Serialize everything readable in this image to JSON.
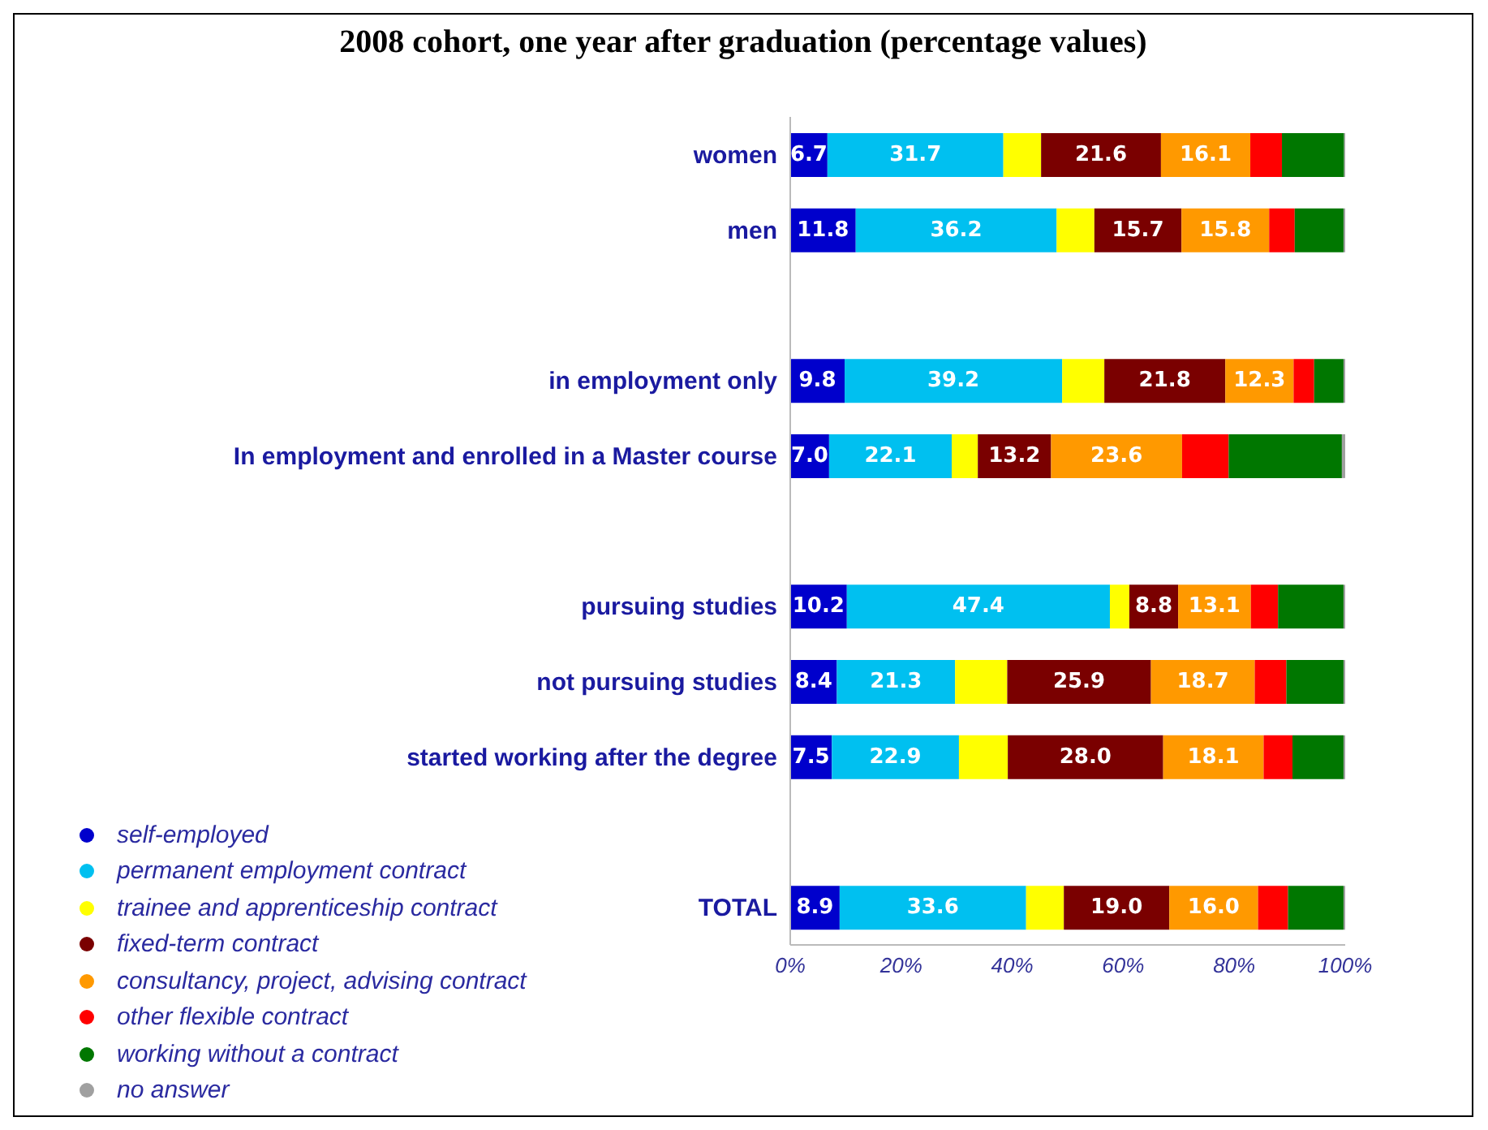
{
  "chart_data": {
    "type": "bar",
    "orientation": "horizontal",
    "stacked": true,
    "title": "2008 cohort, one year after graduation (percentage values)",
    "categories": [
      "women",
      "men",
      null,
      "in employment only",
      "In employment and enrolled in a Master course",
      null,
      "pursuing studies",
      "not pursuing studies",
      "started working after the degree",
      null,
      "TOTAL"
    ],
    "series": [
      {
        "name": "self-employed",
        "color": "#0000cc",
        "values": [
          6.7,
          11.8,
          null,
          9.8,
          7.0,
          null,
          10.2,
          8.4,
          7.5,
          null,
          8.9
        ],
        "value_labels": [
          "6.7",
          "11.8",
          null,
          "9.8",
          "7.0",
          null,
          "10.2",
          "8.4",
          "7.5",
          null,
          "8.9"
        ]
      },
      {
        "name": "permanent employment contract",
        "color": "#00c0f0",
        "values": [
          31.7,
          36.2,
          null,
          39.2,
          22.1,
          null,
          47.4,
          21.3,
          22.9,
          null,
          33.6
        ],
        "value_labels": [
          "31.7",
          "36.2",
          null,
          "39.2",
          "22.1",
          null,
          "47.4",
          "21.3",
          "22.9",
          null,
          "33.6"
        ]
      },
      {
        "name": "trainee and apprenticeship contract",
        "color": "#ffff00",
        "values": [
          6.8,
          6.8,
          null,
          7.6,
          4.7,
          null,
          3.5,
          9.4,
          8.8,
          null,
          6.8
        ]
      },
      {
        "name": "fixed-term contract",
        "color": "#7a0000",
        "values": [
          21.6,
          15.7,
          null,
          21.8,
          13.2,
          null,
          8.8,
          25.9,
          28.0,
          null,
          19.0
        ],
        "value_labels": [
          "21.6",
          "15.7",
          null,
          "21.8",
          "13.2",
          null,
          "8.8",
          "25.9",
          "28.0",
          null,
          "19.0"
        ]
      },
      {
        "name": "consultancy, project, advising contract",
        "color": "#ff9900",
        "values": [
          16.1,
          15.8,
          null,
          12.3,
          23.6,
          null,
          13.1,
          18.7,
          18.1,
          null,
          16.0
        ],
        "value_labels": [
          "16.1",
          "15.8",
          null,
          "12.3",
          "23.6",
          null,
          "13.1",
          "18.7",
          "18.1",
          null,
          "16.0"
        ]
      },
      {
        "name": "other flexible contract",
        "color": "#ff0000",
        "values": [
          5.7,
          4.6,
          null,
          3.7,
          8.4,
          null,
          4.9,
          5.7,
          5.2,
          null,
          5.4
        ]
      },
      {
        "name": "working without a contract",
        "color": "#007700",
        "values": [
          11.2,
          8.8,
          null,
          5.3,
          20.4,
          null,
          11.8,
          10.3,
          9.2,
          null,
          10.0
        ]
      },
      {
        "name": "no answer",
        "color": "#a0a0a0",
        "values": [
          0.2,
          0.3,
          null,
          0.3,
          0.6,
          null,
          0.3,
          0.3,
          0.3,
          null,
          0.3
        ]
      }
    ],
    "xlim": [
      0,
      100
    ],
    "xticks": [
      {
        "value": 0,
        "label": "0%"
      },
      {
        "value": 20,
        "label": "20%"
      },
      {
        "value": 40,
        "label": "40%"
      },
      {
        "value": 60,
        "label": "60%"
      },
      {
        "value": 80,
        "label": "80%"
      },
      {
        "value": 100,
        "label": "100%"
      }
    ],
    "legend": "bottom left"
  }
}
